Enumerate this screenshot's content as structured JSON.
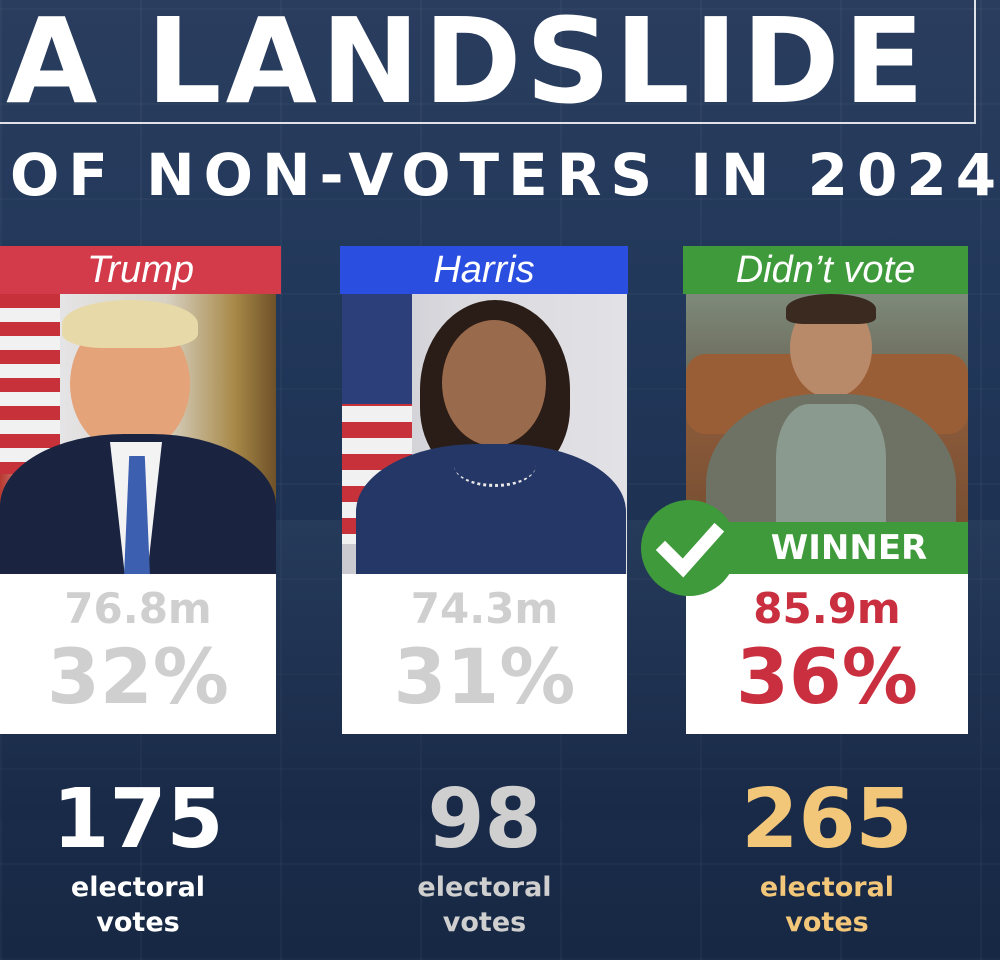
{
  "headline": {
    "title": "A LANDSLIDE",
    "subtitle": "OF NON-VOTERS IN 2024"
  },
  "colors": {
    "trump": "#d33a4a",
    "harris": "#2a4ee0",
    "didnt_vote": "#3f9a3b",
    "muted": "#cfcfcf",
    "winner_red": "#c92f3f",
    "gold": "#f3c77a"
  },
  "candidates": [
    {
      "label": "Trump",
      "votes": "76.8m",
      "percent": "32%",
      "electoral": "175",
      "electoral_label_1": "electoral",
      "electoral_label_2": "votes"
    },
    {
      "label": "Harris",
      "votes": "74.3m",
      "percent": "31%",
      "electoral": "98",
      "electoral_label_1": "electoral",
      "electoral_label_2": "votes"
    },
    {
      "label": "Didn’t vote",
      "votes": "85.9m",
      "percent": "36%",
      "electoral": "265",
      "electoral_label_1": "electoral",
      "electoral_label_2": "votes",
      "badge": "WINNER",
      "badge_icon": "check-icon"
    }
  ]
}
